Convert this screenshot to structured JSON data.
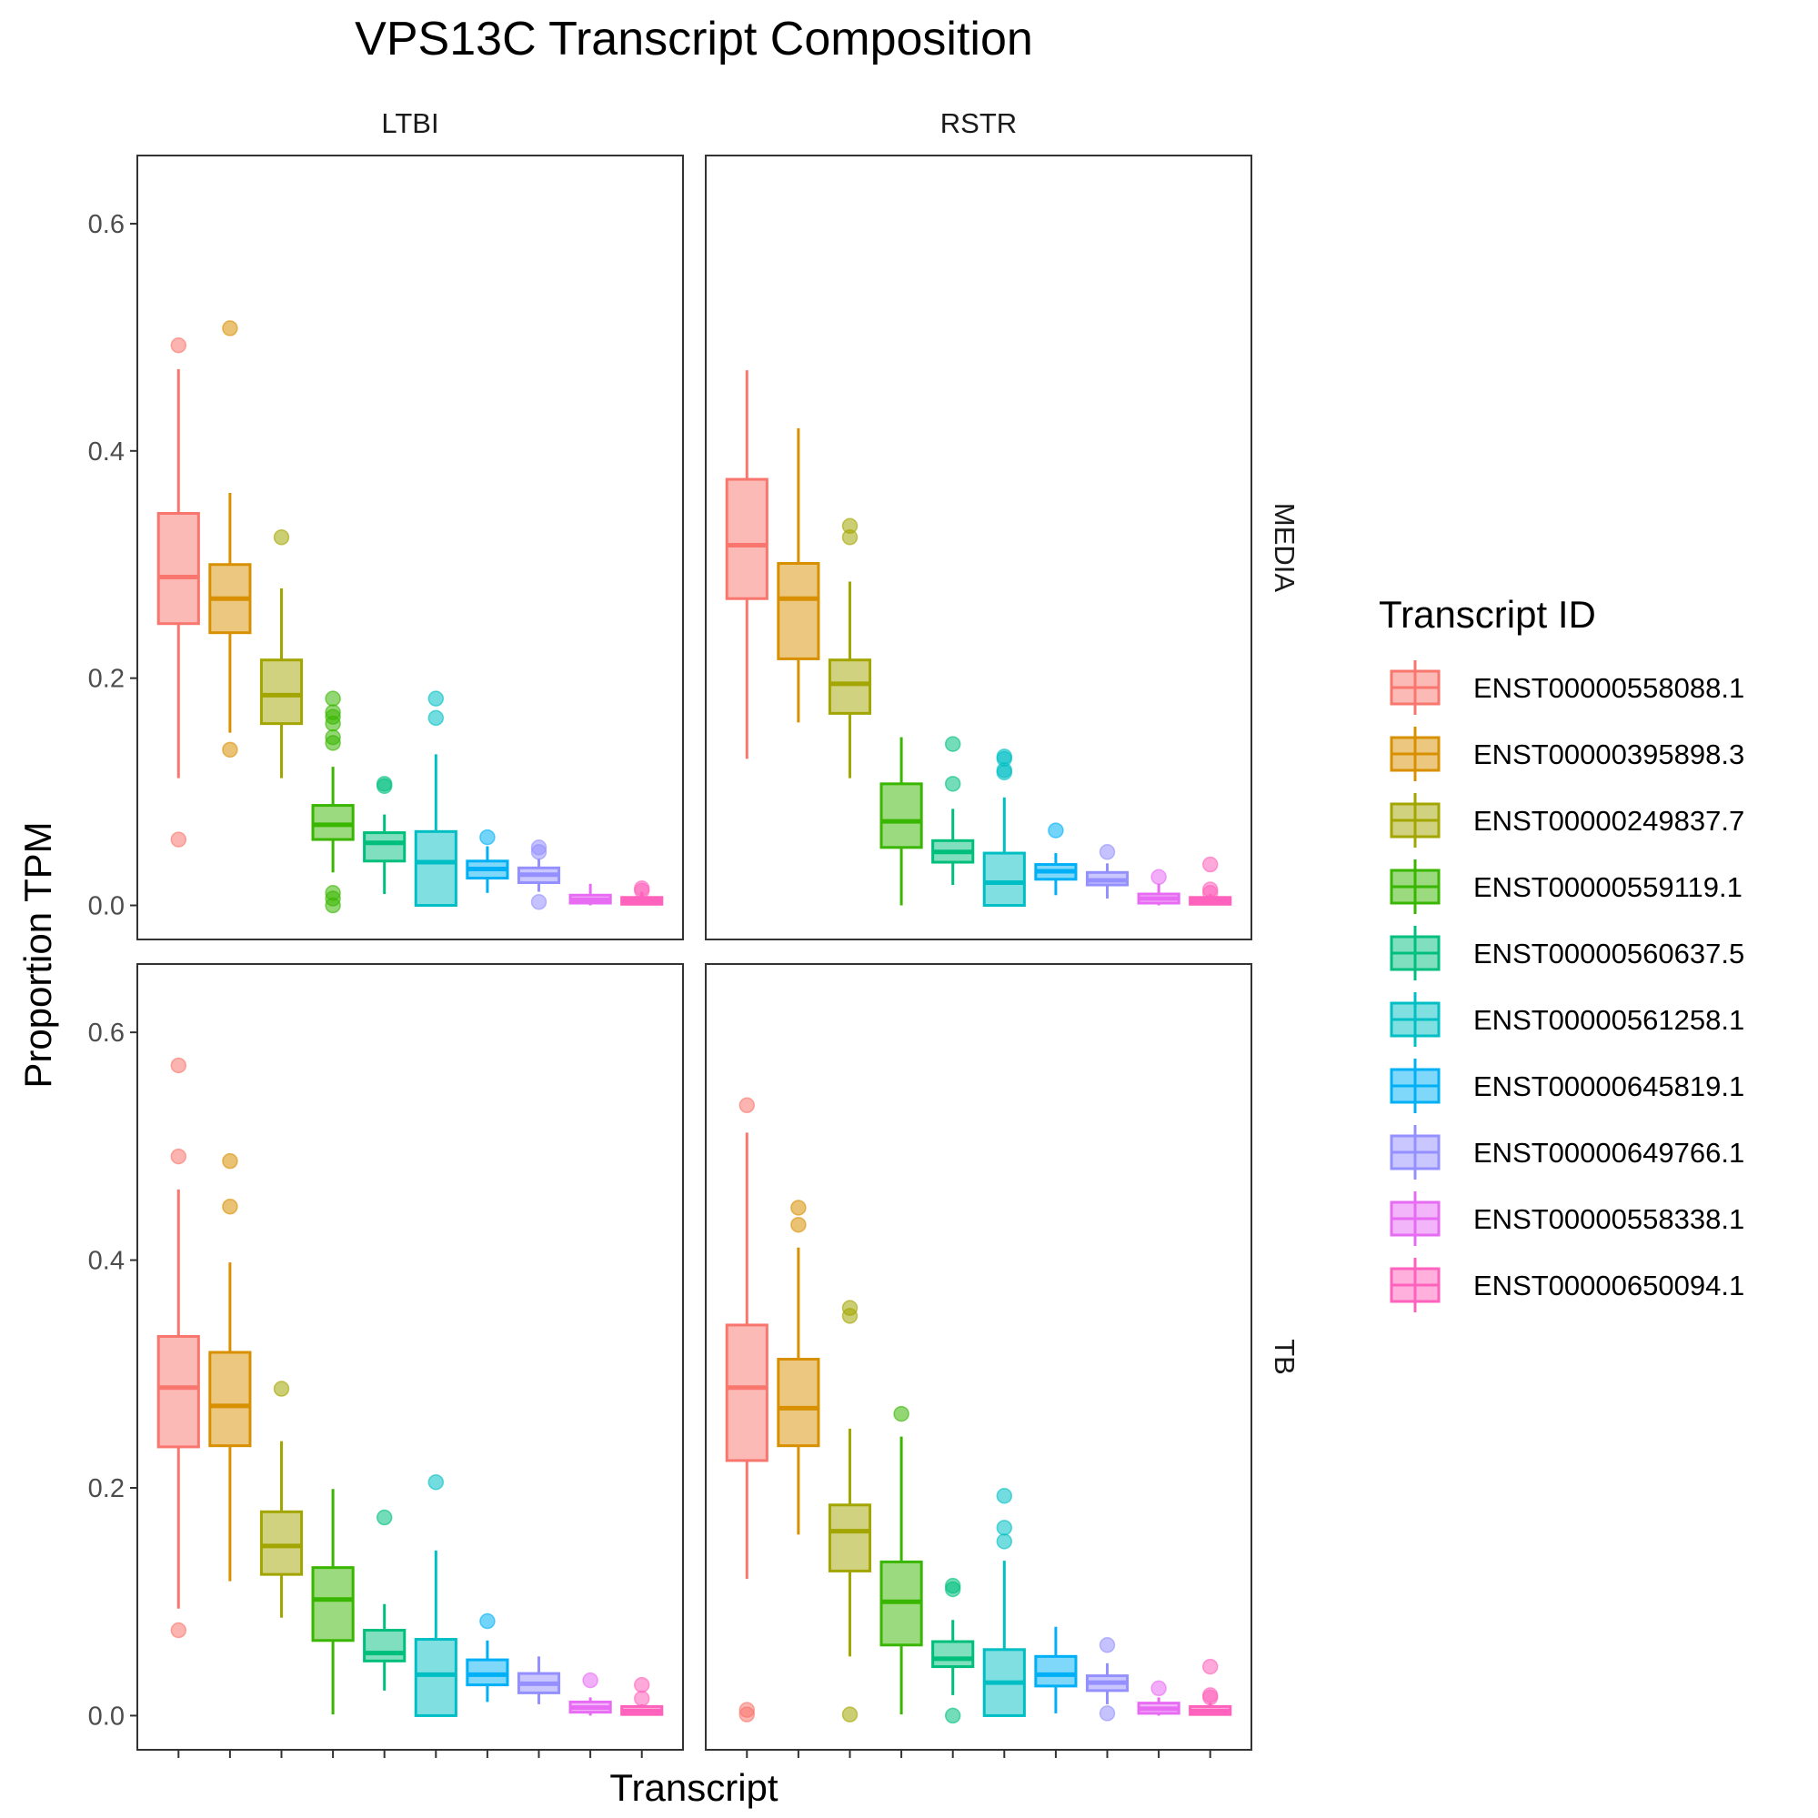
{
  "chart_data": {
    "type": "box",
    "title": "VPS13C Transcript Composition",
    "xlabel": "Transcript",
    "ylabel": "Proportion TPM",
    "ylim": [
      -0.03,
      0.66
    ],
    "yticks": [
      0.0,
      0.2,
      0.4,
      0.6
    ],
    "ytick_labels": [
      "0.0",
      "0.2",
      "0.4",
      "0.6"
    ],
    "grid": false,
    "legend": {
      "title": "Transcript ID",
      "position": "right",
      "entries": [
        {
          "label": "ENST00000558088.1",
          "color": "#F8766D"
        },
        {
          "label": "ENST00000395898.3",
          "color": "#D89000"
        },
        {
          "label": "ENST00000249837.7",
          "color": "#A3A500"
        },
        {
          "label": "ENST00000559119.1",
          "color": "#39B600"
        },
        {
          "label": "ENST00000560637.5",
          "color": "#00BF7D"
        },
        {
          "label": "ENST00000561258.1",
          "color": "#00BFC4"
        },
        {
          "label": "ENST00000645819.1",
          "color": "#00B0F6"
        },
        {
          "label": "ENST00000649766.1",
          "color": "#9590FF"
        },
        {
          "label": "ENST00000558338.1",
          "color": "#E76BF3"
        },
        {
          "label": "ENST00000650094.1",
          "color": "#FF62BC"
        }
      ]
    },
    "col_facets": [
      "LTBI",
      "RSTR"
    ],
    "row_facets": [
      "MEDIA",
      "TB"
    ],
    "panels": [
      {
        "col": "LTBI",
        "row": "MEDIA",
        "boxes": [
          {
            "q1": 0.248,
            "median": 0.289,
            "q3": 0.345,
            "whisker_low": 0.112,
            "whisker_high": 0.472,
            "outliers": [
              0.493,
              0.058
            ]
          },
          {
            "q1": 0.24,
            "median": 0.27,
            "q3": 0.3,
            "whisker_low": 0.152,
            "whisker_high": 0.363,
            "outliers": [
              0.508,
              0.137
            ]
          },
          {
            "q1": 0.16,
            "median": 0.185,
            "q3": 0.216,
            "whisker_low": 0.112,
            "whisker_high": 0.279,
            "outliers": [
              0.324
            ]
          },
          {
            "q1": 0.058,
            "median": 0.071,
            "q3": 0.088,
            "whisker_low": 0.029,
            "whisker_high": 0.122,
            "outliers": [
              0.182,
              0.17,
              0.166,
              0.16,
              0.148,
              0.143,
              0.011,
              0.006,
              0.0
            ]
          },
          {
            "q1": 0.039,
            "median": 0.055,
            "q3": 0.064,
            "whisker_low": 0.01,
            "whisker_high": 0.08,
            "outliers": [
              0.107,
              0.105
            ]
          },
          {
            "q1": 0.0,
            "median": 0.038,
            "q3": 0.065,
            "whisker_low": 0.0,
            "whisker_high": 0.133,
            "outliers": [
              0.182,
              0.165
            ]
          },
          {
            "q1": 0.024,
            "median": 0.032,
            "q3": 0.039,
            "whisker_low": 0.011,
            "whisker_high": 0.052,
            "outliers": [
              0.06
            ]
          },
          {
            "q1": 0.02,
            "median": 0.027,
            "q3": 0.033,
            "whisker_low": 0.012,
            "whisker_high": 0.041,
            "outliers": [
              0.051,
              0.047,
              0.003
            ]
          },
          {
            "q1": 0.002,
            "median": 0.005,
            "q3": 0.009,
            "whisker_low": 0.0,
            "whisker_high": 0.019,
            "outliers": []
          },
          {
            "q1": 0.001,
            "median": 0.004,
            "q3": 0.007,
            "whisker_low": 0.0,
            "whisker_high": 0.012,
            "outliers": [
              0.015,
              0.013
            ]
          }
        ]
      },
      {
        "col": "RSTR",
        "row": "MEDIA",
        "boxes": [
          {
            "q1": 0.27,
            "median": 0.317,
            "q3": 0.375,
            "whisker_low": 0.129,
            "whisker_high": 0.471,
            "outliers": []
          },
          {
            "q1": 0.217,
            "median": 0.27,
            "q3": 0.301,
            "whisker_low": 0.161,
            "whisker_high": 0.42,
            "outliers": []
          },
          {
            "q1": 0.169,
            "median": 0.195,
            "q3": 0.216,
            "whisker_low": 0.112,
            "whisker_high": 0.285,
            "outliers": [
              0.334,
              0.324
            ]
          },
          {
            "q1": 0.051,
            "median": 0.074,
            "q3": 0.107,
            "whisker_low": 0.0,
            "whisker_high": 0.148,
            "outliers": []
          },
          {
            "q1": 0.038,
            "median": 0.047,
            "q3": 0.057,
            "whisker_low": 0.018,
            "whisker_high": 0.085,
            "outliers": [
              0.142,
              0.107
            ]
          },
          {
            "q1": 0.0,
            "median": 0.02,
            "q3": 0.046,
            "whisker_low": 0.0,
            "whisker_high": 0.095,
            "outliers": [
              0.131,
              0.129,
              0.119,
              0.117
            ]
          },
          {
            "q1": 0.023,
            "median": 0.03,
            "q3": 0.036,
            "whisker_low": 0.009,
            "whisker_high": 0.046,
            "outliers": [
              0.066
            ]
          },
          {
            "q1": 0.018,
            "median": 0.022,
            "q3": 0.029,
            "whisker_low": 0.006,
            "whisker_high": 0.037,
            "outliers": [
              0.047
            ]
          },
          {
            "q1": 0.002,
            "median": 0.006,
            "q3": 0.01,
            "whisker_low": 0.0,
            "whisker_high": 0.019,
            "outliers": [
              0.025
            ]
          },
          {
            "q1": 0.001,
            "median": 0.004,
            "q3": 0.007,
            "whisker_low": 0.0,
            "whisker_high": 0.01,
            "outliers": [
              0.036,
              0.014,
              0.011
            ]
          }
        ]
      },
      {
        "col": "LTBI",
        "row": "TB",
        "boxes": [
          {
            "q1": 0.236,
            "median": 0.288,
            "q3": 0.333,
            "whisker_low": 0.094,
            "whisker_high": 0.462,
            "outliers": [
              0.571,
              0.491,
              0.075
            ]
          },
          {
            "q1": 0.237,
            "median": 0.272,
            "q3": 0.319,
            "whisker_low": 0.118,
            "whisker_high": 0.398,
            "outliers": [
              0.487,
              0.447
            ]
          },
          {
            "q1": 0.124,
            "median": 0.149,
            "q3": 0.179,
            "whisker_low": 0.086,
            "whisker_high": 0.241,
            "outliers": [
              0.287
            ]
          },
          {
            "q1": 0.066,
            "median": 0.102,
            "q3": 0.13,
            "whisker_low": 0.001,
            "whisker_high": 0.199,
            "outliers": []
          },
          {
            "q1": 0.048,
            "median": 0.055,
            "q3": 0.075,
            "whisker_low": 0.022,
            "whisker_high": 0.098,
            "outliers": [
              0.174
            ]
          },
          {
            "q1": 0.0,
            "median": 0.036,
            "q3": 0.067,
            "whisker_low": 0.0,
            "whisker_high": 0.145,
            "outliers": [
              0.205
            ]
          },
          {
            "q1": 0.027,
            "median": 0.036,
            "q3": 0.049,
            "whisker_low": 0.012,
            "whisker_high": 0.066,
            "outliers": [
              0.083
            ]
          },
          {
            "q1": 0.02,
            "median": 0.028,
            "q3": 0.037,
            "whisker_low": 0.01,
            "whisker_high": 0.052,
            "outliers": []
          },
          {
            "q1": 0.003,
            "median": 0.007,
            "q3": 0.012,
            "whisker_low": 0.0,
            "whisker_high": 0.016,
            "outliers": [
              0.031
            ]
          },
          {
            "q1": 0.001,
            "median": 0.004,
            "q3": 0.008,
            "whisker_low": 0.0,
            "whisker_high": 0.01,
            "outliers": [
              0.027,
              0.015
            ]
          }
        ]
      },
      {
        "col": "RSTR",
        "row": "TB",
        "boxes": [
          {
            "q1": 0.224,
            "median": 0.288,
            "q3": 0.343,
            "whisker_low": 0.12,
            "whisker_high": 0.512,
            "outliers": [
              0.536,
              0.005,
              0.001
            ]
          },
          {
            "q1": 0.237,
            "median": 0.27,
            "q3": 0.313,
            "whisker_low": 0.159,
            "whisker_high": 0.411,
            "outliers": [
              0.446,
              0.431
            ]
          },
          {
            "q1": 0.127,
            "median": 0.162,
            "q3": 0.185,
            "whisker_low": 0.052,
            "whisker_high": 0.252,
            "outliers": [
              0.358,
              0.351,
              0.001
            ]
          },
          {
            "q1": 0.062,
            "median": 0.1,
            "q3": 0.135,
            "whisker_low": 0.001,
            "whisker_high": 0.245,
            "outliers": [
              0.265
            ]
          },
          {
            "q1": 0.043,
            "median": 0.05,
            "q3": 0.065,
            "whisker_low": 0.018,
            "whisker_high": 0.084,
            "outliers": [
              0.114,
              0.111,
              0.0
            ]
          },
          {
            "q1": 0.0,
            "median": 0.029,
            "q3": 0.058,
            "whisker_low": 0.0,
            "whisker_high": 0.136,
            "outliers": [
              0.193,
              0.165,
              0.153
            ]
          },
          {
            "q1": 0.026,
            "median": 0.036,
            "q3": 0.052,
            "whisker_low": 0.002,
            "whisker_high": 0.078,
            "outliers": []
          },
          {
            "q1": 0.022,
            "median": 0.029,
            "q3": 0.035,
            "whisker_low": 0.01,
            "whisker_high": 0.046,
            "outliers": [
              0.062,
              0.002
            ]
          },
          {
            "q1": 0.002,
            "median": 0.006,
            "q3": 0.011,
            "whisker_low": 0.0,
            "whisker_high": 0.016,
            "outliers": [
              0.024
            ]
          },
          {
            "q1": 0.001,
            "median": 0.004,
            "q3": 0.008,
            "whisker_low": 0.0,
            "whisker_high": 0.011,
            "outliers": [
              0.043,
              0.018,
              0.016
            ]
          }
        ]
      }
    ]
  }
}
